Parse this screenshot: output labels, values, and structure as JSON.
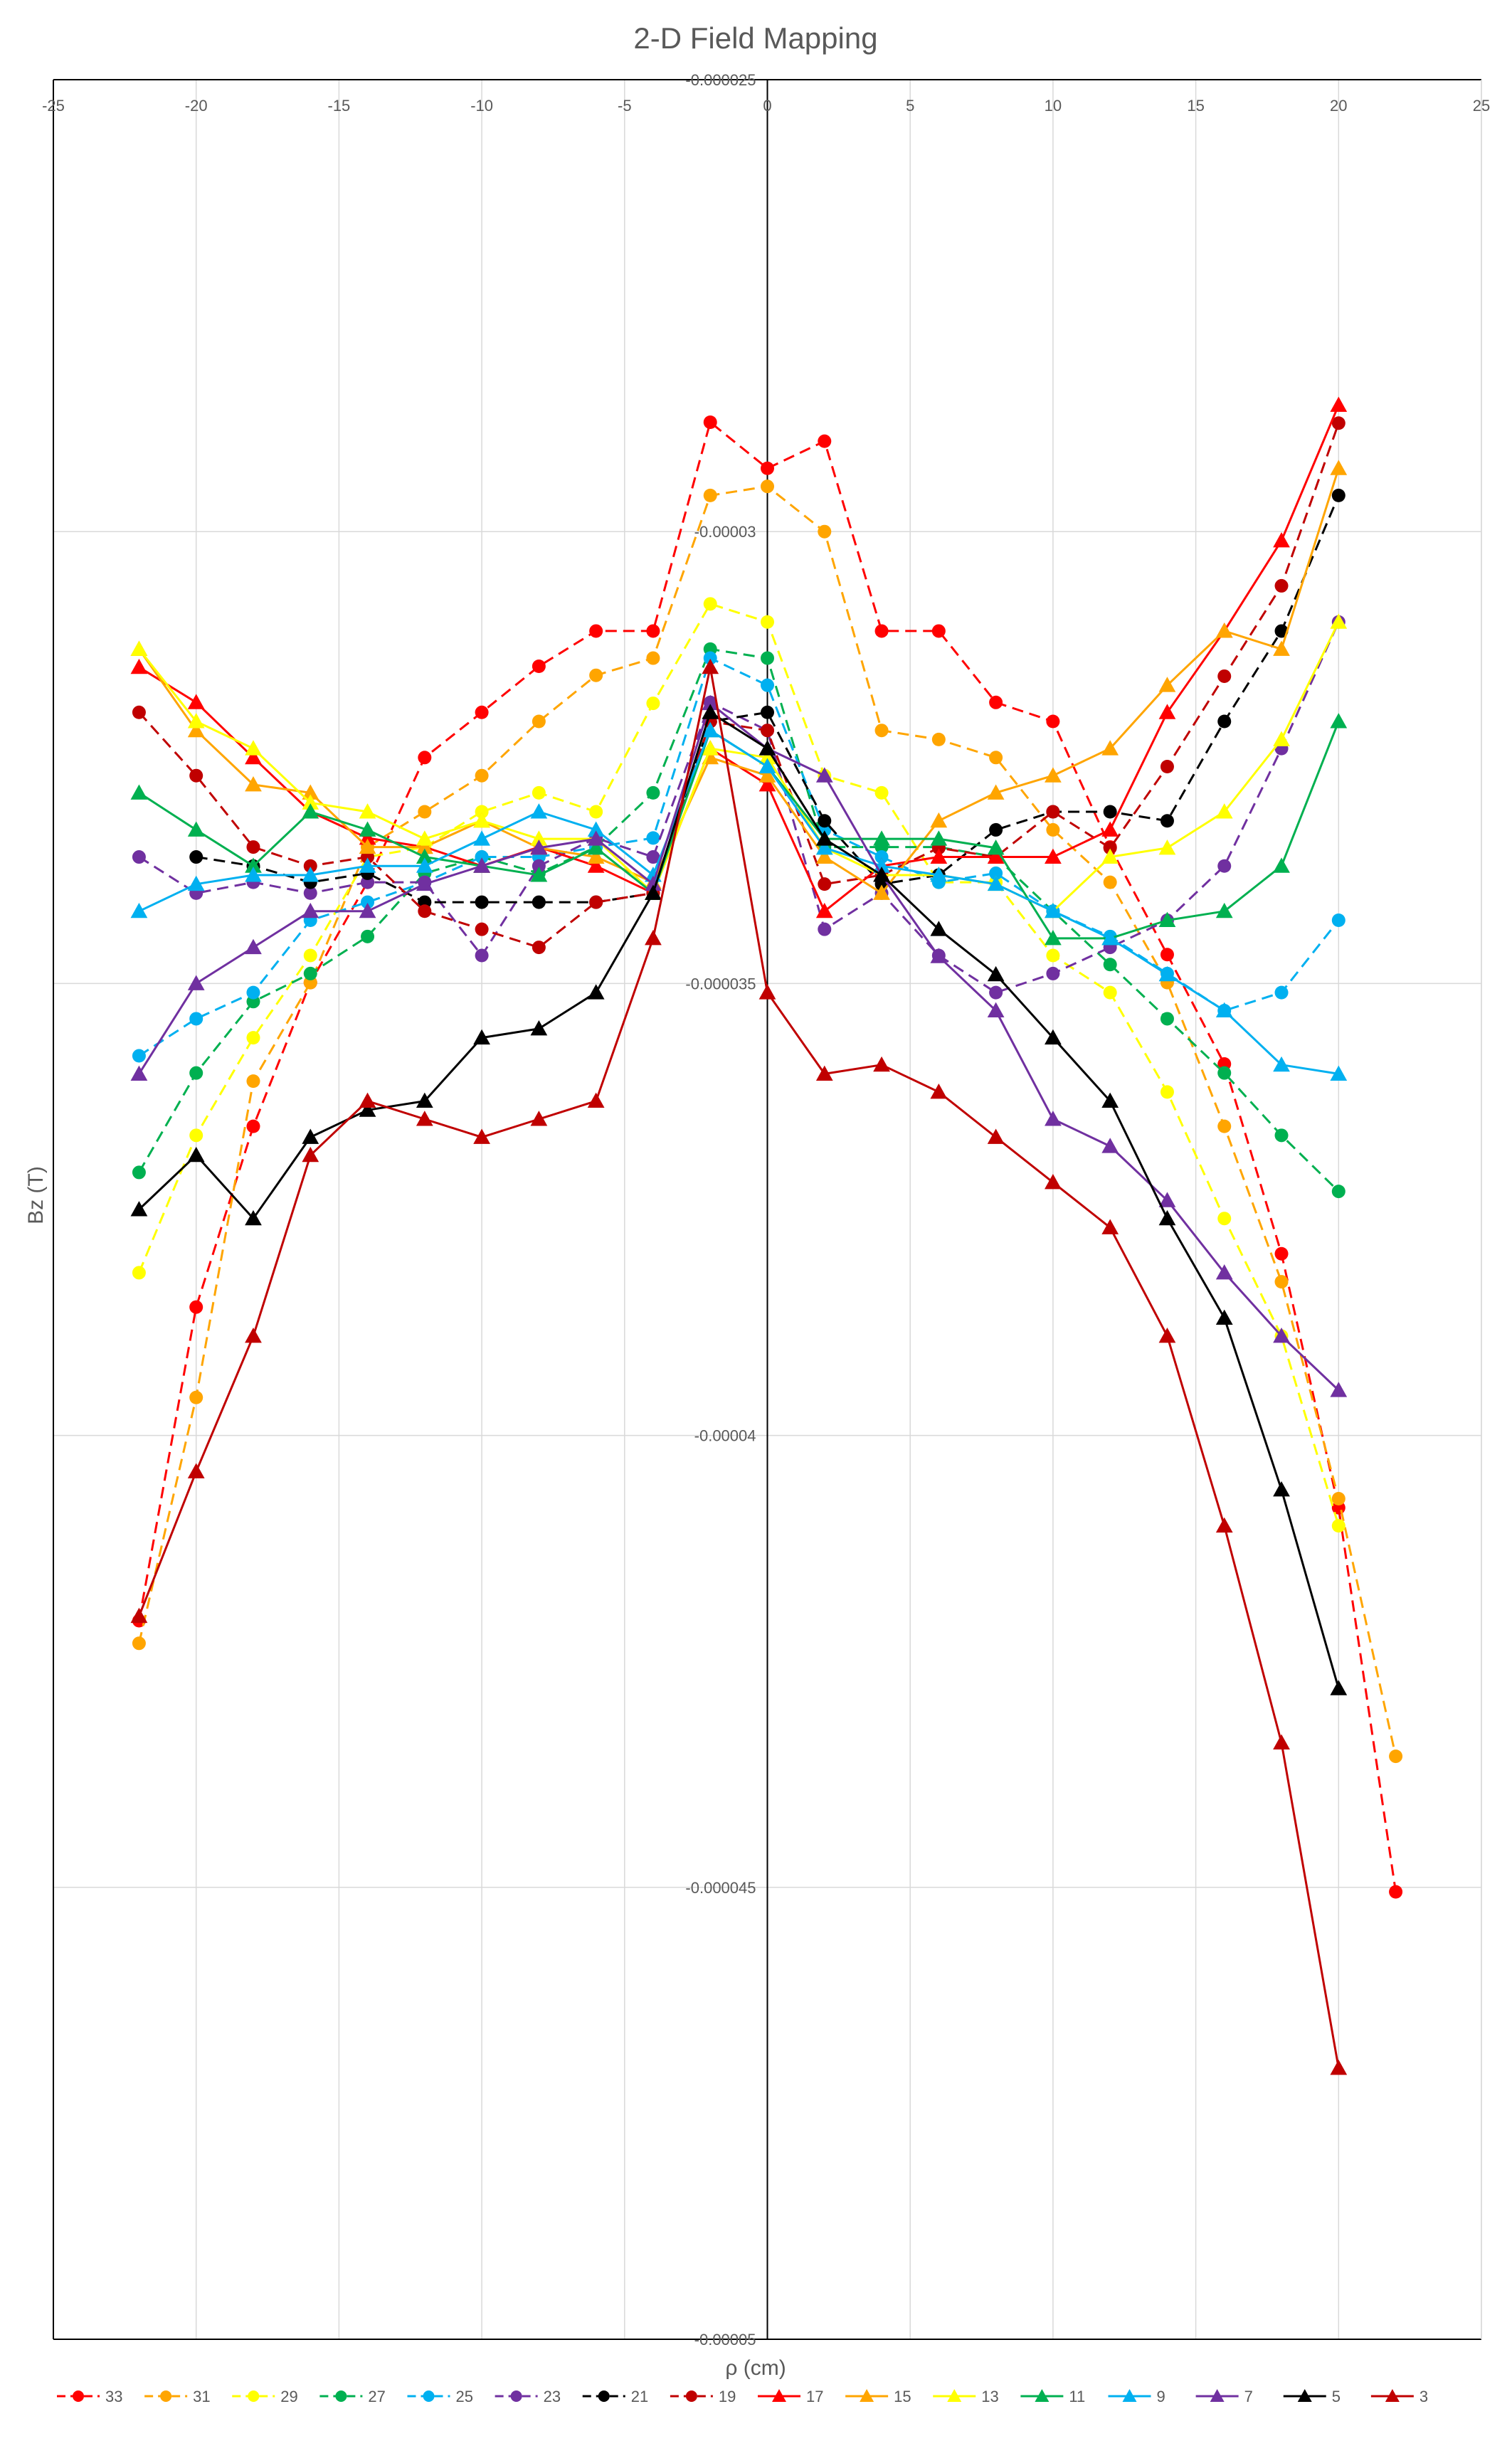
{
  "chart_data": {
    "type": "line",
    "title": "2-D Field Mapping",
    "xlabel": "ρ (cm)",
    "ylabel": "Bz (T)",
    "xlim": [
      -25,
      25
    ],
    "ylim": [
      -5e-05,
      -2.5e-05
    ],
    "x_ticks": [
      "-25",
      "-20",
      "-15",
      "-10",
      "-5",
      "0",
      "5",
      "10",
      "15",
      "20",
      "25"
    ],
    "y_ticks": [
      "-0.000025",
      "-0.00003",
      "-0.000035",
      "-0.00004",
      "-0.000045",
      "-0.00005"
    ],
    "x_tick_values": [
      -25,
      -20,
      -15,
      -10,
      -5,
      0,
      5,
      10,
      15,
      20,
      25
    ],
    "y_tick_values": [
      -2.5e-05,
      -3e-05,
      -3.5e-05,
      -4e-05,
      -4.5e-05,
      -5e-05
    ],
    "grid": true,
    "legend_position": "bottom",
    "series": [
      {
        "name": "33",
        "color": "#ff0000",
        "marker": "circle",
        "dash": true,
        "x": [
          -22,
          -20,
          -18,
          -16,
          -14,
          -12,
          -10,
          -8,
          -6,
          -4,
          -2,
          0,
          2,
          4,
          6,
          8,
          10,
          12,
          14,
          16,
          18,
          20,
          22
        ],
        "y": [
          -4.205e-05,
          -3.858e-05,
          -3.658e-05,
          -3.499e-05,
          -3.388e-05,
          -3.25e-05,
          -3.2e-05,
          -3.149e-05,
          -3.11e-05,
          -3.11e-05,
          -2.879e-05,
          -2.93e-05,
          -2.9e-05,
          -3.11e-05,
          -3.11e-05,
          -3.189e-05,
          -3.21e-05,
          -3.349e-05,
          -3.468e-05,
          -3.589e-05,
          -3.799e-05,
          -4.08e-05,
          -4.505e-05
        ]
      },
      {
        "name": "31",
        "color": "#ffa500",
        "marker": "circle",
        "dash": true,
        "x": [
          -22,
          -20,
          -18,
          -16,
          -14,
          -12,
          -10,
          -8,
          -6,
          -4,
          -2,
          0,
          2,
          4,
          6,
          8,
          10,
          12,
          14,
          16,
          18,
          20,
          22
        ],
        "y": [
          -4.23e-05,
          -3.958e-05,
          -3.608e-05,
          -3.499e-05,
          -3.349e-05,
          -3.31e-05,
          -3.27e-05,
          -3.21e-05,
          -3.159e-05,
          -3.14e-05,
          -2.96e-05,
          -2.95e-05,
          -3e-05,
          -3.22e-05,
          -3.23e-05,
          -3.25e-05,
          -3.33e-05,
          -3.388e-05,
          -3.499e-05,
          -3.658e-05,
          -3.83e-05,
          -4.07e-05,
          -4.355e-05
        ]
      },
      {
        "name": "29",
        "color": "#ffff00",
        "marker": "circle",
        "dash": true,
        "x": [
          -22,
          -20,
          -18,
          -16,
          -14,
          -12,
          -10,
          -8,
          -6,
          -4,
          -2,
          0,
          2,
          4,
          6,
          8,
          10,
          12,
          14,
          16,
          18,
          20
        ],
        "y": [
          -3.82e-05,
          -3.668e-05,
          -3.56e-05,
          -3.469e-05,
          -3.36e-05,
          -3.349e-05,
          -3.31e-05,
          -3.289e-05,
          -3.31e-05,
          -3.19e-05,
          -3.08e-05,
          -3.1e-05,
          -3.27e-05,
          -3.289e-05,
          -3.388e-05,
          -3.388e-05,
          -3.469e-05,
          -3.51e-05,
          -3.62e-05,
          -3.76e-05,
          -3.89e-05,
          -4.1e-05
        ]
      },
      {
        "name": "27",
        "color": "#00b050",
        "marker": "circle",
        "dash": true,
        "x": [
          -22,
          -20,
          -18,
          -16,
          -14,
          -12,
          -10,
          -8,
          -6,
          -4,
          -2,
          0,
          2,
          4,
          6,
          8,
          10,
          12,
          14,
          16,
          18,
          20
        ],
        "y": [
          -3.709e-05,
          -3.599e-05,
          -3.52e-05,
          -3.489e-05,
          -3.448e-05,
          -3.378e-05,
          -3.36e-05,
          -3.378e-05,
          -3.349e-05,
          -3.289e-05,
          -3.13e-05,
          -3.14e-05,
          -3.349e-05,
          -3.349e-05,
          -3.349e-05,
          -3.36e-05,
          -3.42e-05,
          -3.479e-05,
          -3.539e-05,
          -3.599e-05,
          -3.668e-05,
          -3.73e-05
        ]
      },
      {
        "name": "25",
        "color": "#00b0f0",
        "marker": "circle",
        "dash": true,
        "x": [
          -22,
          -20,
          -18,
          -16,
          -14,
          -12,
          -10,
          -8,
          -6,
          -4,
          -2,
          0,
          2,
          4,
          6,
          8,
          10,
          12,
          14,
          16,
          18,
          20
        ],
        "y": [
          -3.58e-05,
          -3.539e-05,
          -3.51e-05,
          -3.43e-05,
          -3.41e-05,
          -3.388e-05,
          -3.36e-05,
          -3.36e-05,
          -3.349e-05,
          -3.339e-05,
          -3.14e-05,
          -3.17e-05,
          -3.33e-05,
          -3.36e-05,
          -3.388e-05,
          -3.378e-05,
          -3.42e-05,
          -3.448e-05,
          -3.489e-05,
          -3.53e-05,
          -3.51e-05,
          -3.43e-05
        ]
      },
      {
        "name": "23",
        "color": "#7030a0",
        "marker": "circle",
        "dash": true,
        "x": [
          -22,
          -20,
          -18,
          -16,
          -14,
          -12,
          -10,
          -8,
          -6,
          -4,
          -2,
          0,
          2,
          4,
          6,
          8,
          10,
          12,
          14,
          16,
          18,
          20
        ],
        "y": [
          -3.36e-05,
          -3.4e-05,
          -3.388e-05,
          -3.4e-05,
          -3.388e-05,
          -3.388e-05,
          -3.469e-05,
          -3.37e-05,
          -3.339e-05,
          -3.36e-05,
          -3.189e-05,
          -3.22e-05,
          -3.44e-05,
          -3.4e-05,
          -3.469e-05,
          -3.51e-05,
          -3.489e-05,
          -3.46e-05,
          -3.43e-05,
          -3.37e-05,
          -3.24e-05,
          -3.1e-05
        ]
      },
      {
        "name": "21",
        "color": "#000000",
        "marker": "circle",
        "dash": true,
        "x": [
          -20,
          -18,
          -16,
          -14,
          -12,
          -10,
          -8,
          -6,
          -4,
          -2,
          0,
          2,
          4,
          6,
          8,
          10,
          12,
          14,
          16,
          18,
          20
        ],
        "y": [
          -3.36e-05,
          -3.37e-05,
          -3.388e-05,
          -3.378e-05,
          -3.41e-05,
          -3.41e-05,
          -3.41e-05,
          -3.41e-05,
          -3.4e-05,
          -3.21e-05,
          -3.2e-05,
          -3.32e-05,
          -3.39e-05,
          -3.38e-05,
          -3.33e-05,
          -3.31e-05,
          -3.31e-05,
          -3.32e-05,
          -3.21e-05,
          -3.11e-05,
          -2.96e-05
        ]
      },
      {
        "name": "19",
        "color": "#c00000",
        "marker": "circle",
        "dash": true,
        "x": [
          -22,
          -20,
          -18,
          -16,
          -14,
          -12,
          -10,
          -8,
          -6,
          -4,
          -2,
          0,
          2,
          4,
          6,
          8,
          10,
          12,
          14,
          16,
          18,
          20
        ],
        "y": [
          -3.2e-05,
          -3.27e-05,
          -3.349e-05,
          -3.37e-05,
          -3.36e-05,
          -3.42e-05,
          -3.44e-05,
          -3.46e-05,
          -3.41e-05,
          -3.4e-05,
          -3.21e-05,
          -3.22e-05,
          -3.39e-05,
          -3.38e-05,
          -3.35e-05,
          -3.36e-05,
          -3.31e-05,
          -3.35e-05,
          -3.26e-05,
          -3.16e-05,
          -3.06e-05,
          -2.88e-05
        ]
      },
      {
        "name": "17",
        "color": "#ff0000",
        "marker": "triangle",
        "dash": false,
        "x": [
          -22,
          -20,
          -18,
          -16,
          -14,
          -12,
          -10,
          -8,
          -6,
          -4,
          -2,
          0,
          2,
          4,
          6,
          8,
          10,
          12,
          14,
          16,
          18,
          20
        ],
        "y": [
          -3.15e-05,
          -3.189e-05,
          -3.25e-05,
          -3.31e-05,
          -3.339e-05,
          -3.349e-05,
          -3.37e-05,
          -3.349e-05,
          -3.37e-05,
          -3.4e-05,
          -3.24e-05,
          -3.28e-05,
          -3.42e-05,
          -3.37e-05,
          -3.36e-05,
          -3.36e-05,
          -3.36e-05,
          -3.33e-05,
          -3.2e-05,
          -3.11e-05,
          -3.01e-05,
          -2.86e-05
        ]
      },
      {
        "name": "15",
        "color": "#ffa500",
        "marker": "triangle",
        "dash": false,
        "x": [
          -22,
          -20,
          -18,
          -16,
          -14,
          -12,
          -10,
          -8,
          -6,
          -4,
          -2,
          0,
          2,
          4,
          6,
          8,
          10,
          12,
          14,
          16,
          18,
          20
        ],
        "y": [
          -3.13e-05,
          -3.22e-05,
          -3.28e-05,
          -3.289e-05,
          -3.349e-05,
          -3.349e-05,
          -3.32e-05,
          -3.35e-05,
          -3.36e-05,
          -3.388e-05,
          -3.25e-05,
          -3.27e-05,
          -3.36e-05,
          -3.4e-05,
          -3.32e-05,
          -3.289e-05,
          -3.27e-05,
          -3.24e-05,
          -3.17e-05,
          -3.11e-05,
          -3.13e-05,
          -2.93e-05
        ]
      },
      {
        "name": "13",
        "color": "#ffff00",
        "marker": "triangle",
        "dash": false,
        "x": [
          -22,
          -20,
          -18,
          -16,
          -14,
          -12,
          -10,
          -8,
          -6,
          -4,
          -2,
          0,
          2,
          4,
          6,
          8,
          10,
          12,
          14,
          16,
          18,
          20
        ],
        "y": [
          -3.13e-05,
          -3.21e-05,
          -3.24e-05,
          -3.3e-05,
          -3.31e-05,
          -3.34e-05,
          -3.32e-05,
          -3.34e-05,
          -3.34e-05,
          -3.4e-05,
          -3.24e-05,
          -3.25e-05,
          -3.35e-05,
          -3.38e-05,
          -3.38e-05,
          -3.39e-05,
          -3.42e-05,
          -3.36e-05,
          -3.35e-05,
          -3.31e-05,
          -3.23e-05,
          -3.1e-05
        ]
      },
      {
        "name": "11",
        "color": "#00b050",
        "marker": "triangle",
        "dash": false,
        "x": [
          -22,
          -20,
          -18,
          -16,
          -14,
          -12,
          -10,
          -8,
          -6,
          -4,
          -2,
          0,
          2,
          4,
          6,
          8,
          10,
          12,
          14,
          16,
          18,
          20
        ],
        "y": [
          -3.289e-05,
          -3.33e-05,
          -3.37e-05,
          -3.31e-05,
          -3.33e-05,
          -3.36e-05,
          -3.37e-05,
          -3.38e-05,
          -3.35e-05,
          -3.4e-05,
          -3.22e-05,
          -3.26e-05,
          -3.34e-05,
          -3.34e-05,
          -3.34e-05,
          -3.35e-05,
          -3.45e-05,
          -3.45e-05,
          -3.43e-05,
          -3.42e-05,
          -3.37e-05,
          -3.21e-05
        ]
      },
      {
        "name": "9",
        "color": "#00b0f0",
        "marker": "triangle",
        "dash": false,
        "x": [
          -22,
          -20,
          -18,
          -16,
          -14,
          -12,
          -10,
          -8,
          -6,
          -4,
          -2,
          0,
          2,
          4,
          6,
          8,
          10,
          12,
          14,
          16,
          18,
          20
        ],
        "y": [
          -3.42e-05,
          -3.39e-05,
          -3.38e-05,
          -3.38e-05,
          -3.37e-05,
          -3.37e-05,
          -3.34e-05,
          -3.31e-05,
          -3.33e-05,
          -3.38e-05,
          -3.22e-05,
          -3.26e-05,
          -3.35e-05,
          -3.37e-05,
          -3.38e-05,
          -3.39e-05,
          -3.42e-05,
          -3.45e-05,
          -3.49e-05,
          -3.53e-05,
          -3.59e-05,
          -3.6e-05
        ]
      },
      {
        "name": "7",
        "color": "#7030a0",
        "marker": "triangle",
        "dash": false,
        "x": [
          -22,
          -20,
          -18,
          -16,
          -14,
          -12,
          -10,
          -8,
          -6,
          -4,
          -2,
          0,
          2,
          4,
          6,
          8,
          10,
          12,
          14,
          16,
          18,
          20
        ],
        "y": [
          -3.6e-05,
          -3.5e-05,
          -3.46e-05,
          -3.42e-05,
          -3.42e-05,
          -3.39e-05,
          -3.37e-05,
          -3.35e-05,
          -3.34e-05,
          -3.39e-05,
          -3.19e-05,
          -3.24e-05,
          -3.27e-05,
          -3.38e-05,
          -3.47e-05,
          -3.53e-05,
          -3.65e-05,
          -3.68e-05,
          -3.74e-05,
          -3.82e-05,
          -3.89e-05,
          -3.95e-05
        ]
      },
      {
        "name": "5",
        "color": "#000000",
        "marker": "triangle",
        "dash": false,
        "x": [
          -22,
          -20,
          -18,
          -16,
          -14,
          -12,
          -10,
          -8,
          -6,
          -4,
          -2,
          0,
          2,
          4,
          6,
          8,
          10,
          12,
          14,
          16,
          18,
          20
        ],
        "y": [
          -3.75e-05,
          -3.69e-05,
          -3.76e-05,
          -3.67e-05,
          -3.64e-05,
          -3.63e-05,
          -3.56e-05,
          -3.55e-05,
          -3.51e-05,
          -3.4e-05,
          -3.2e-05,
          -3.24e-05,
          -3.34e-05,
          -3.38e-05,
          -3.44e-05,
          -3.49e-05,
          -3.56e-05,
          -3.63e-05,
          -3.76e-05,
          -3.87e-05,
          -4.06e-05,
          -4.28e-05
        ]
      },
      {
        "name": "3",
        "color": "#c00000",
        "marker": "triangle",
        "dash": false,
        "x": [
          -22,
          -20,
          -18,
          -16,
          -14,
          -12,
          -10,
          -8,
          -6,
          -4,
          -2,
          0,
          2,
          4,
          6,
          8,
          10,
          12,
          14,
          16,
          18,
          20
        ],
        "y": [
          -4.2e-05,
          -4.04e-05,
          -3.89e-05,
          -3.69e-05,
          -3.63e-05,
          -3.65e-05,
          -3.67e-05,
          -3.65e-05,
          -3.63e-05,
          -3.45e-05,
          -3.15e-05,
          -3.51e-05,
          -3.6e-05,
          -3.59e-05,
          -3.62e-05,
          -3.67e-05,
          -3.72e-05,
          -3.77e-05,
          -3.89e-05,
          -4.1e-05,
          -4.34e-05,
          -4.7e-05
        ]
      }
    ]
  }
}
